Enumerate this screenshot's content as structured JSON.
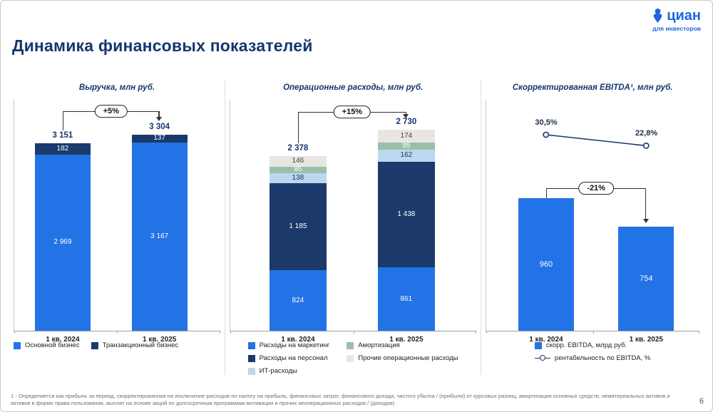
{
  "header": {
    "title": "Динамика финансовых показателей",
    "logo": {
      "brand": "циан",
      "tagline": "для инвесторов"
    }
  },
  "page_number": "6",
  "footnote": "1 - Определяется как прибыль за период, скорректированная на исключение расходов по налогу на прибыль, финансовых затрат, финансового дохода, чистого убытка / (прибыли) от курсовых разниц, амортизации основных средств, нематериальных активов и активов в форме права пользования, выплат на основе акций по долгосрочным программам мотивации и прочих неоперационных расходов / (доходов)",
  "colors": {
    "blue": "#2273E6",
    "navy": "#1B3A6B",
    "lightblue": "#BDD7EE",
    "green": "#9CBFA9",
    "gray": "#E7E6E1",
    "title_navy": "#17366D",
    "brand_blue": "#1E66E0"
  },
  "chart_data": [
    {
      "type": "bar",
      "title": "Выручка, млн руб.",
      "categories": [
        "1 кв. 2024",
        "1 кв. 2025"
      ],
      "series": [
        {
          "name": "Основной бизнес",
          "color_key": "blue",
          "values": [
            2969,
            3167
          ],
          "labels": [
            "2 969",
            "3 167"
          ]
        },
        {
          "name": "Транзакционный бизнес",
          "color_key": "navy",
          "values": [
            182,
            137
          ],
          "labels": [
            "182",
            "137"
          ]
        }
      ],
      "totals": [
        3151,
        3304
      ],
      "total_labels": [
        "3 151",
        "3 304"
      ],
      "change_label": "+5%",
      "ylim": [
        0,
        3900
      ],
      "legend_position": "bottom"
    },
    {
      "type": "bar",
      "title": "Операционные расходы, млн руб.",
      "categories": [
        "1 кв. 2024",
        "1 кв. 2025"
      ],
      "series": [
        {
          "name": "Расходы на маркетинг",
          "color_key": "blue",
          "values": [
            824,
            861
          ],
          "labels": [
            "824",
            "861"
          ]
        },
        {
          "name": "Расходы на персонал",
          "color_key": "navy",
          "values": [
            1185,
            1438
          ],
          "labels": [
            "1 185",
            "1 438"
          ]
        },
        {
          "name": "ИТ-расходы",
          "color_key": "lightblue",
          "values": [
            138,
            162
          ],
          "labels": [
            "138",
            "162"
          ]
        },
        {
          "name": "Амортизация",
          "color_key": "green",
          "values": [
            85,
            95
          ],
          "labels": [
            "85",
            "95"
          ]
        },
        {
          "name": "Прочие операционные расходы",
          "color_key": "gray",
          "values": [
            146,
            174
          ],
          "labels": [
            "146",
            "174"
          ]
        }
      ],
      "totals": [
        2378,
        2730
      ],
      "total_labels": [
        "2 378",
        "2 730"
      ],
      "change_label": "+15%",
      "ylim": [
        0,
        3150
      ],
      "legend_position": "bottom"
    },
    {
      "type": "bar+line",
      "title": "Скорректированная EBITDA¹, млн руб.",
      "categories": [
        "1 кв. 2024",
        "1 кв. 2025"
      ],
      "series": [
        {
          "name": "скорр. EBITDA, млрд руб.",
          "color_key": "blue",
          "values": [
            960,
            754
          ],
          "labels": [
            "960",
            "754"
          ]
        }
      ],
      "line_series": {
        "name": "рентабельность по EBITDA, %",
        "values_pct": [
          30.5,
          22.8
        ],
        "labels": [
          "30,5%",
          "22,8%"
        ]
      },
      "change_label": "-21%",
      "ylim": [
        0,
        1680
      ],
      "legend_position": "bottom"
    }
  ]
}
